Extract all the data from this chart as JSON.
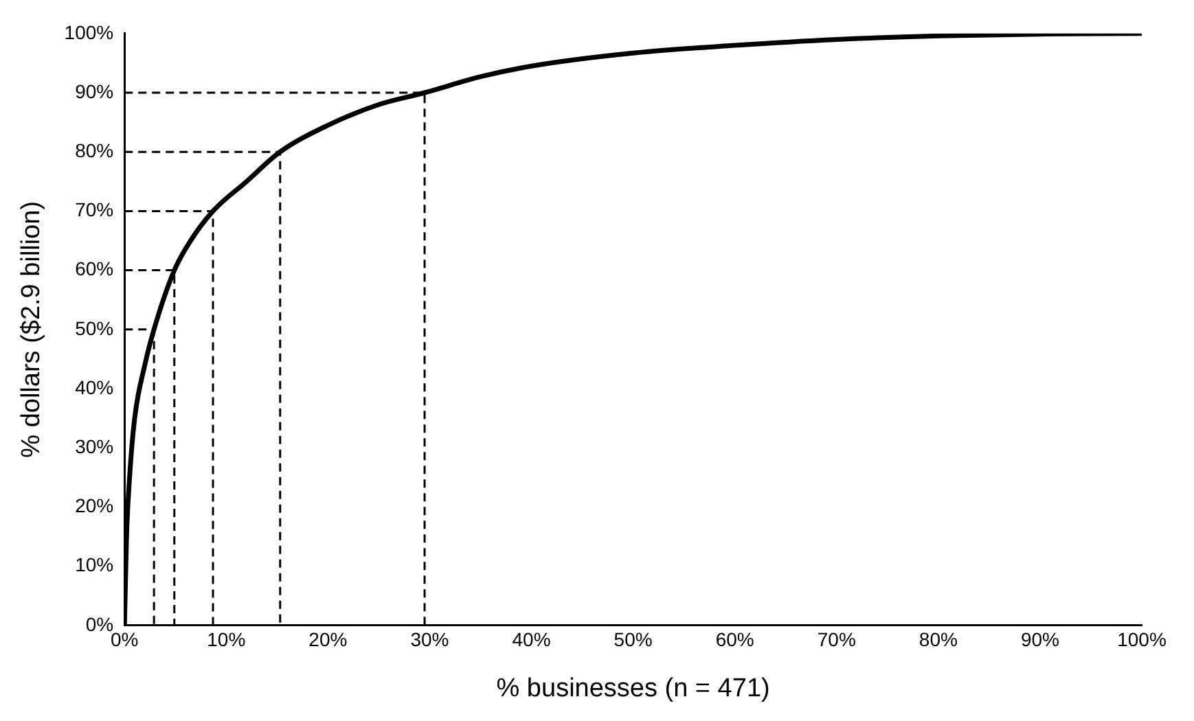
{
  "chart_data": {
    "type": "line",
    "xlabel": "% businesses (n = 471)",
    "ylabel": "% dollars ($2.9 billion)",
    "xlim": [
      0,
      100
    ],
    "ylim": [
      0,
      100
    ],
    "xticks": [
      {
        "value": 0,
        "label": "0%"
      },
      {
        "value": 10,
        "label": "10%"
      },
      {
        "value": 20,
        "label": "20%"
      },
      {
        "value": 30,
        "label": "30%"
      },
      {
        "value": 40,
        "label": "40%"
      },
      {
        "value": 50,
        "label": "50%"
      },
      {
        "value": 60,
        "label": "60%"
      },
      {
        "value": 70,
        "label": "70%"
      },
      {
        "value": 80,
        "label": "80%"
      },
      {
        "value": 90,
        "label": "90%"
      },
      {
        "value": 100,
        "label": "100%"
      }
    ],
    "yticks": [
      {
        "value": 0,
        "label": "0%"
      },
      {
        "value": 10,
        "label": "10%"
      },
      {
        "value": 20,
        "label": "20%"
      },
      {
        "value": 30,
        "label": "30%"
      },
      {
        "value": 40,
        "label": "40%"
      },
      {
        "value": 50,
        "label": "50%"
      },
      {
        "value": 60,
        "label": "60%"
      },
      {
        "value": 70,
        "label": "70%"
      },
      {
        "value": 80,
        "label": "80%"
      },
      {
        "value": 90,
        "label": "90%"
      },
      {
        "value": 100,
        "label": "100%"
      }
    ],
    "grid": false,
    "legend": false,
    "marker": "none",
    "series": [
      {
        "type": "line",
        "color": "#000000",
        "line_style": "solid",
        "x": [
          0,
          0.2,
          0.5,
          1,
          2,
          2.9,
          4.9,
          6.5,
          8.7,
          12,
          15.3,
          20,
          25,
          29.5,
          35,
          40,
          50,
          60,
          70,
          80,
          90,
          100
        ],
        "values": [
          0,
          15,
          25,
          35,
          44,
          50,
          60,
          65,
          70,
          75,
          80,
          84.5,
          88,
          90,
          92.7,
          94.5,
          96.7,
          98,
          99,
          99.6,
          99.9,
          100
        ]
      },
      {
        "type": "line",
        "color": "#000000",
        "line_style": "dashed",
        "x": [
          0,
          2.9,
          2.9
        ],
        "values": [
          50,
          50,
          0
        ]
      },
      {
        "type": "line",
        "color": "#000000",
        "line_style": "dashed",
        "x": [
          0,
          4.9,
          4.9
        ],
        "values": [
          60,
          60,
          0
        ]
      },
      {
        "type": "line",
        "color": "#000000",
        "line_style": "dashed",
        "x": [
          0,
          8.7,
          8.7
        ],
        "values": [
          70,
          70,
          0
        ]
      },
      {
        "type": "line",
        "color": "#000000",
        "line_style": "dashed",
        "x": [
          0,
          15.3,
          15.3
        ],
        "values": [
          80,
          80,
          0
        ]
      },
      {
        "type": "line",
        "color": "#000000",
        "line_style": "dashed",
        "x": [
          0,
          29.5,
          29.5
        ],
        "values": [
          90,
          90,
          0
        ]
      }
    ]
  }
}
